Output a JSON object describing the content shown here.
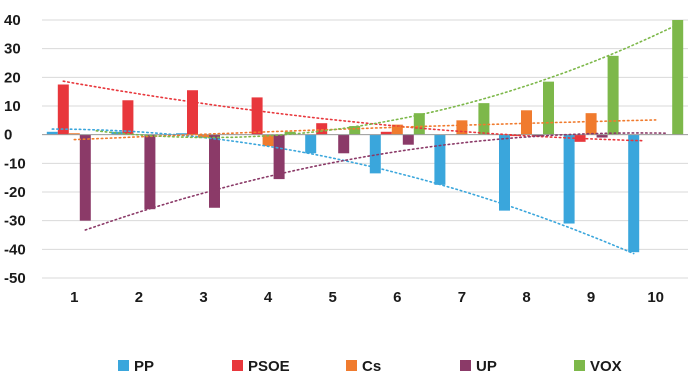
{
  "chart_data": {
    "type": "bar",
    "title": "",
    "xlabel": "",
    "ylabel": "",
    "categories": [
      "1",
      "2",
      "3",
      "4",
      "5",
      "6",
      "7",
      "8",
      "9",
      "10"
    ],
    "ylim": [
      -50,
      40
    ],
    "yticks": [
      40,
      30,
      20,
      10,
      0,
      -10,
      -20,
      -30,
      -40,
      -50
    ],
    "grid": true,
    "legend_position": "bottom",
    "series": [
      {
        "name": "PP",
        "color": "#3aa6dc",
        "values": [
          1,
          1,
          0.5,
          0,
          -6.5,
          -13.5,
          -17.5,
          -26.5,
          -31,
          -41
        ]
      },
      {
        "name": "PSOE",
        "color": "#e8373c",
        "values": [
          17.5,
          12,
          15.5,
          13,
          4,
          1,
          0,
          -0.5,
          -2.5,
          0
        ]
      },
      {
        "name": "Cs",
        "color": "#f07b2e",
        "values": [
          0.5,
          0,
          -1,
          -4,
          0,
          3.5,
          5,
          8.5,
          7.5,
          0
        ]
      },
      {
        "name": "UP",
        "color": "#8b3a68",
        "values": [
          -30,
          -26,
          -25.5,
          -15.5,
          -6.5,
          -3.5,
          0,
          -0.5,
          -1,
          0
        ]
      },
      {
        "name": "VOX",
        "color": "#7db84a",
        "values": [
          0,
          0,
          0,
          1,
          3,
          7.5,
          11,
          18.5,
          27.5,
          40
        ]
      }
    ],
    "trendlines": true
  }
}
